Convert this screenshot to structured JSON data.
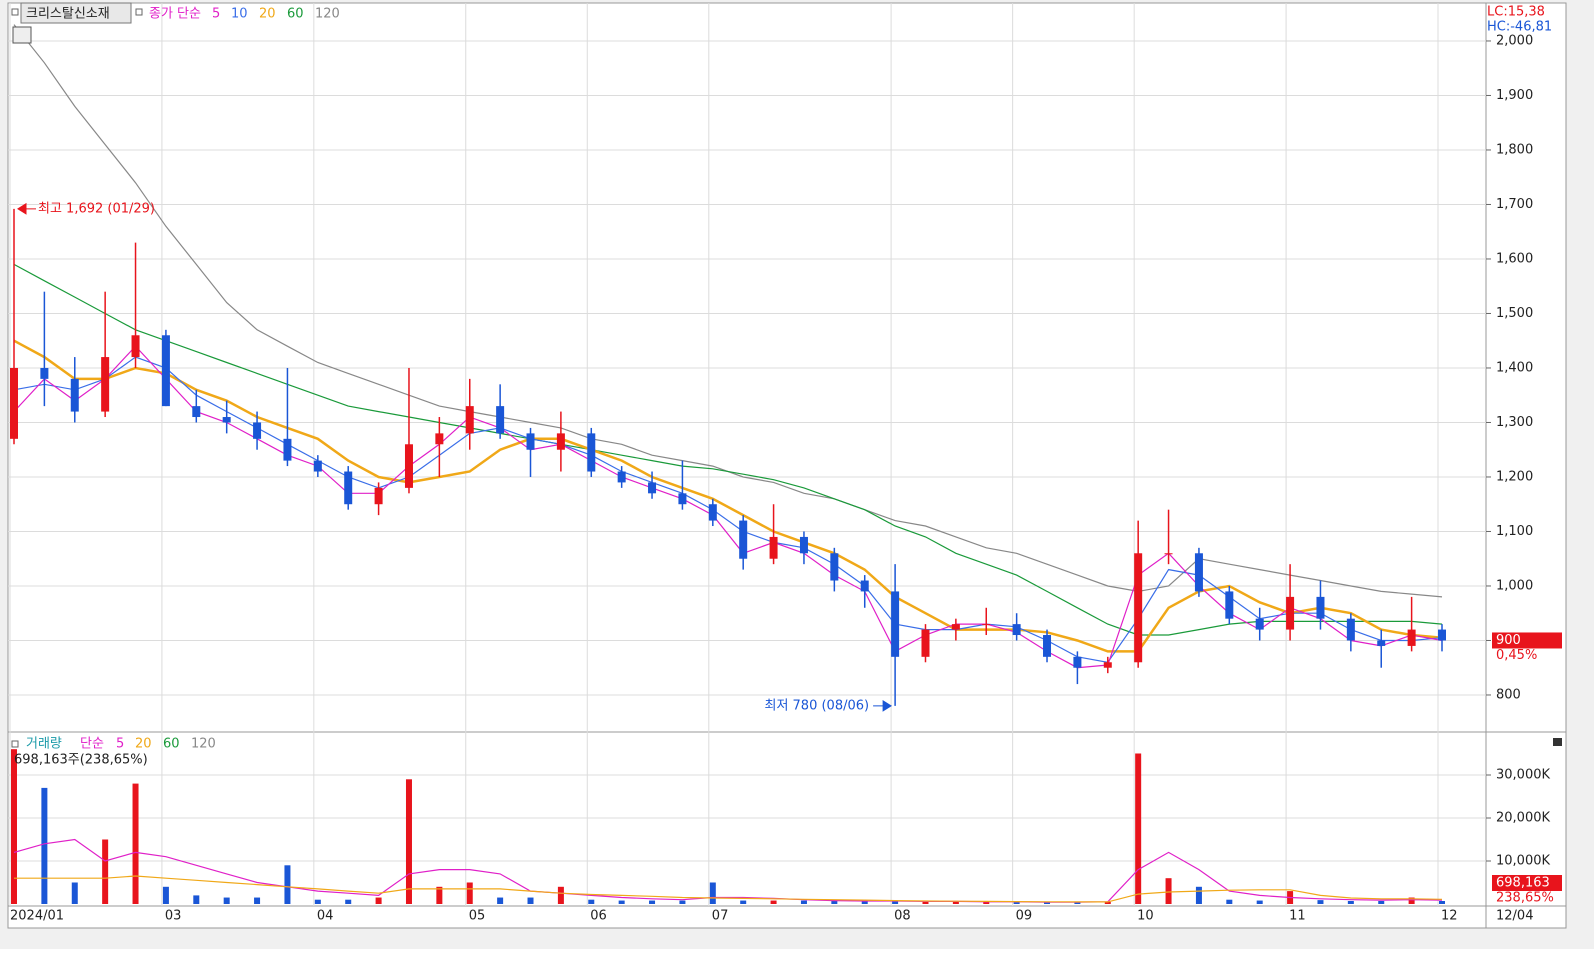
{
  "chart_data": [
    {
      "type": "candlestick",
      "name": "크리스탈신소재",
      "legend_prefix": "종가 단순",
      "categories": [
        "2024/01",
        null,
        null,
        null,
        null,
        "03",
        null,
        null,
        null,
        null,
        "04",
        null,
        null,
        null,
        null,
        "05",
        null,
        null,
        null,
        "06",
        null,
        null,
        null,
        "07",
        null,
        null,
        null,
        null,
        null,
        "08",
        null,
        null,
        null,
        "09",
        null,
        null,
        null,
        "10",
        null,
        null,
        null,
        null,
        "11",
        null,
        null,
        null,
        null,
        "12"
      ],
      "open": [
        1270,
        1400,
        1380,
        1320,
        1420,
        1460,
        1330,
        1310,
        1300,
        1270,
        1230,
        1210,
        1150,
        1180,
        1260,
        1280,
        1330,
        1280,
        1250,
        1280,
        1210,
        1190,
        1170,
        1150,
        1120,
        1050,
        1090,
        1060,
        1010,
        990,
        870,
        920,
        930,
        930,
        910,
        870,
        850,
        860,
        1060,
        1060,
        990,
        940,
        920,
        980,
        940,
        900,
        890,
        920
      ],
      "high": [
        1692,
        1540,
        1420,
        1540,
        1630,
        1470,
        1360,
        1340,
        1320,
        1400,
        1240,
        1220,
        1190,
        1400,
        1310,
        1380,
        1370,
        1290,
        1320,
        1290,
        1220,
        1210,
        1230,
        1160,
        1130,
        1150,
        1100,
        1070,
        1020,
        1040,
        930,
        940,
        960,
        950,
        920,
        880,
        870,
        1120,
        1140,
        1070,
        1000,
        960,
        1040,
        1010,
        950,
        920,
        980,
        930
      ],
      "low": [
        1260,
        1330,
        1300,
        1310,
        1400,
        1330,
        1300,
        1280,
        1250,
        1220,
        1200,
        1140,
        1130,
        1170,
        1200,
        1250,
        1270,
        1200,
        1210,
        1200,
        1180,
        1160,
        1140,
        1110,
        1030,
        1040,
        1040,
        990,
        960,
        780,
        860,
        900,
        910,
        900,
        860,
        820,
        840,
        850,
        1040,
        980,
        930,
        900,
        900,
        920,
        880,
        850,
        880,
        880
      ],
      "close": [
        1400,
        1380,
        1320,
        1420,
        1460,
        1330,
        1310,
        1300,
        1270,
        1230,
        1210,
        1150,
        1180,
        1260,
        1280,
        1330,
        1280,
        1250,
        1280,
        1210,
        1190,
        1170,
        1150,
        1120,
        1050,
        1090,
        1060,
        1010,
        990,
        870,
        920,
        930,
        930,
        910,
        870,
        850,
        860,
        1060,
        1060,
        990,
        940,
        920,
        980,
        940,
        900,
        890,
        920,
        900
      ],
      "up_color": "#e8141c",
      "down_color": "#1a56d6",
      "series": [
        {
          "name": "5",
          "color": "#e020c8",
          "values": [
            1320,
            1380,
            1340,
            1380,
            1440,
            1380,
            1320,
            1300,
            1270,
            1240,
            1220,
            1170,
            1170,
            1220,
            1260,
            1310,
            1290,
            1250,
            1260,
            1230,
            1200,
            1180,
            1160,
            1130,
            1060,
            1080,
            1060,
            1020,
            990,
            880,
            910,
            930,
            930,
            915,
            880,
            850,
            855,
            1020,
            1060,
            1000,
            950,
            920,
            960,
            940,
            900,
            890,
            910,
            900
          ]
        },
        {
          "name": "10",
          "color": "#3a6ee8",
          "values": [
            1360,
            1370,
            1360,
            1380,
            1420,
            1400,
            1350,
            1320,
            1290,
            1260,
            1230,
            1200,
            1180,
            1200,
            1240,
            1280,
            1290,
            1270,
            1260,
            1240,
            1210,
            1190,
            1170,
            1140,
            1100,
            1080,
            1070,
            1040,
            1000,
            930,
            920,
            920,
            930,
            925,
            900,
            870,
            860,
            940,
            1030,
            1020,
            980,
            940,
            950,
            950,
            920,
            900,
            900,
            905
          ]
        },
        {
          "name": "20",
          "color": "#f0a818",
          "values": [
            1450,
            1420,
            1380,
            1380,
            1400,
            1390,
            1360,
            1340,
            1310,
            1290,
            1270,
            1230,
            1200,
            1190,
            1200,
            1210,
            1250,
            1270,
            1270,
            1250,
            1230,
            1200,
            1180,
            1160,
            1130,
            1100,
            1080,
            1060,
            1030,
            980,
            950,
            920,
            920,
            920,
            915,
            900,
            880,
            880,
            960,
            990,
            1000,
            970,
            950,
            960,
            950,
            920,
            910,
            905
          ]
        },
        {
          "name": "60",
          "color": "#1a9a3a",
          "values": [
            1590,
            1560,
            1530,
            1500,
            1470,
            1450,
            1430,
            1410,
            1390,
            1370,
            1350,
            1330,
            1320,
            1310,
            1300,
            1290,
            1280,
            1270,
            1260,
            1250,
            1240,
            1230,
            1220,
            1215,
            1205,
            1195,
            1180,
            1160,
            1140,
            1110,
            1090,
            1060,
            1040,
            1020,
            990,
            960,
            930,
            910,
            910,
            920,
            930,
            935,
            935,
            935,
            935,
            935,
            935,
            930
          ]
        },
        {
          "name": "120",
          "color": "#888888",
          "values": [
            2030,
            1960,
            1880,
            1810,
            1740,
            1660,
            1590,
            1520,
            1470,
            1440,
            1410,
            1390,
            1370,
            1350,
            1330,
            1320,
            1310,
            1300,
            1290,
            1270,
            1260,
            1240,
            1230,
            1220,
            1200,
            1190,
            1170,
            1160,
            1140,
            1120,
            1110,
            1090,
            1070,
            1060,
            1040,
            1020,
            1000,
            990,
            1000,
            1050,
            1040,
            1030,
            1020,
            1010,
            1000,
            990,
            985,
            980
          ]
        }
      ],
      "ylim": [
        735,
        2066
      ],
      "yticks": [
        800,
        900,
        {
          "value": 1000,
          "label": "1,000"
        },
        {
          "value": 1100,
          "label": "1,100"
        },
        {
          "value": 1200,
          "label": "1,200"
        },
        {
          "value": 1300,
          "label": "1,300"
        },
        {
          "value": 1400,
          "label": "1,400"
        },
        {
          "value": 1500,
          "label": "1,500"
        },
        {
          "value": 1600,
          "label": "1,600"
        },
        {
          "value": 1700,
          "label": "1,700"
        },
        {
          "value": 1800,
          "label": "1,800"
        },
        {
          "value": 1900,
          "label": "1,900"
        },
        {
          "value": 2000,
          "label": "2,000"
        }
      ],
      "grid": true,
      "annotations": {
        "high": "최고 1,692 (01/29)",
        "low": "최저 780 (08/06)",
        "lc": "LC:15,38",
        "hc": "HC:-46,81",
        "last_price": "900",
        "change": "0,45%"
      },
      "last_date": "12/04"
    },
    {
      "type": "bar",
      "legend_title": "거래량",
      "legend_prefix": "단순",
      "info": "698,163주(238,65%)",
      "values": [
        36000,
        27000,
        5000,
        15000,
        28000,
        4000,
        2000,
        1500,
        1500,
        9000,
        1000,
        1000,
        1500,
        29000,
        4000,
        5000,
        1500,
        1500,
        4000,
        1000,
        800,
        800,
        800,
        5000,
        800,
        800,
        800,
        800,
        800,
        800,
        600,
        600,
        500,
        500,
        400,
        400,
        500,
        35000,
        6000,
        4000,
        1000,
        800,
        3000,
        900,
        700,
        700,
        1500,
        698
      ],
      "series": [
        {
          "name": "5",
          "color": "#e020c8",
          "values": [
            12000,
            14000,
            15000,
            10000,
            12000,
            11000,
            9000,
            7000,
            5000,
            4000,
            3000,
            2500,
            2000,
            7000,
            8000,
            8000,
            7000,
            3000,
            2500,
            2000,
            1500,
            1200,
            1000,
            1500,
            1500,
            1300,
            1000,
            800,
            700,
            700,
            600,
            600,
            500,
            500,
            450,
            450,
            500,
            8000,
            12000,
            8000,
            3000,
            2000,
            1500,
            1200,
            1000,
            900,
            1000,
            900
          ]
        },
        {
          "name": "20",
          "color": "#f0a818",
          "values": [
            6000,
            6000,
            6000,
            6000,
            6500,
            6000,
            5500,
            5000,
            4500,
            4000,
            3500,
            3000,
            2500,
            3500,
            3500,
            3500,
            3500,
            3000,
            2500,
            2200,
            2000,
            1800,
            1500,
            1400,
            1300,
            1200,
            1100,
            1000,
            900,
            800,
            700,
            650,
            600,
            550,
            500,
            480,
            480,
            2300,
            2800,
            3000,
            3200,
            3300,
            3300,
            2000,
            1400,
            1200,
            1200,
            1100
          ]
        }
      ],
      "legend_extra": [
        {
          "name": "60",
          "color": "#1a9a3a"
        },
        {
          "name": "120",
          "color": "#888888"
        }
      ],
      "ylim": [
        0,
        39300
      ],
      "yticks": [
        {
          "value": 10000,
          "label": "10,000K"
        },
        {
          "value": 20000,
          "label": "20,000K"
        },
        {
          "value": 30000,
          "label": "30,000K"
        }
      ],
      "grid": true,
      "annotations": {
        "last_volume": "698,163",
        "ratio": "238,65%"
      }
    }
  ]
}
